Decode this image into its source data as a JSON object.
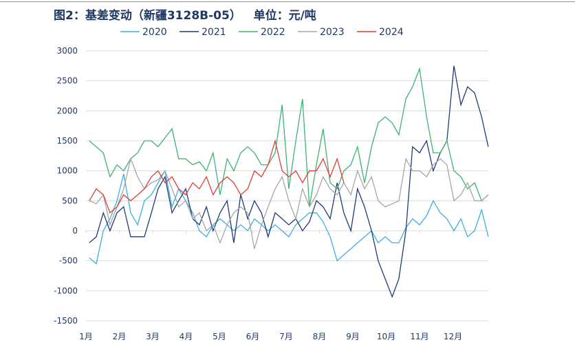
{
  "chart_data": {
    "type": "line",
    "title": "图2：基差变动（新疆3128B-05）   单位：元/吨",
    "xlabel": "",
    "ylabel": "",
    "ylim": [
      -1500,
      3000
    ],
    "yticks": [
      3000,
      2500,
      2000,
      1500,
      1000,
      500,
      0,
      -500,
      -1000,
      -1500
    ],
    "xlim": [
      1,
      13.1
    ],
    "xtick_labels": [
      "1月",
      "2月",
      "3月",
      "4月",
      "5月",
      "6月",
      "7月",
      "8月",
      "9月",
      "10月",
      "11月",
      "12月"
    ],
    "grid": true,
    "legend_position": "top",
    "x": [
      1.1,
      1.31,
      1.52,
      1.72,
      1.93,
      2.13,
      2.34,
      2.55,
      2.75,
      2.96,
      3.16,
      3.37,
      3.58,
      3.78,
      3.99,
      4.2,
      4.4,
      4.61,
      4.81,
      5.02,
      5.23,
      5.43,
      5.64,
      5.85,
      6.05,
      6.26,
      6.46,
      6.67,
      6.88,
      7.08,
      7.29,
      7.49,
      7.7,
      7.91,
      8.11,
      8.32,
      8.53,
      8.73,
      8.94,
      9.14,
      9.35,
      9.56,
      9.76,
      9.97,
      10.18,
      10.38,
      10.59,
      10.79,
      11.0,
      11.21,
      11.41,
      11.62,
      11.82,
      12.03,
      12.24,
      12.44,
      12.65,
      12.86,
      13.06
    ],
    "series": [
      {
        "name": "2020",
        "color": "#3bb0e0",
        "values": [
          -450,
          -550,
          0,
          200,
          500,
          950,
          300,
          100,
          500,
          600,
          800,
          1000,
          400,
          700,
          500,
          300,
          0,
          -100,
          100,
          200,
          100,
          0,
          100,
          0,
          200,
          100,
          0,
          100,
          0,
          -100,
          100,
          200,
          300,
          300,
          150,
          -100,
          -500,
          -400,
          -300,
          -200,
          -100,
          0,
          -200,
          -100,
          -200,
          -200,
          50,
          200,
          100,
          250,
          500,
          300,
          200,
          0,
          200,
          -100,
          0,
          350,
          -100
        ]
      },
      {
        "name": "2021",
        "color": "#1f3a78",
        "values": [
          -200,
          -100,
          300,
          0,
          300,
          400,
          -100,
          -100,
          -100,
          300,
          700,
          900,
          300,
          500,
          700,
          200,
          100,
          400,
          0,
          300,
          500,
          -200,
          600,
          200,
          500,
          300,
          -100,
          300,
          200,
          100,
          200,
          0,
          150,
          500,
          400,
          200,
          800,
          300,
          0,
          700,
          400,
          0,
          -500,
          -800,
          -1100,
          -800,
          0,
          1400,
          1300,
          1500,
          1000,
          1300,
          1500,
          2750,
          2100,
          2400,
          2300,
          1900,
          1400
        ]
      },
      {
        "name": "2022",
        "color": "#3cb371",
        "values": [
          1500,
          1400,
          1300,
          900,
          1100,
          1000,
          1200,
          1300,
          1500,
          1500,
          1400,
          1550,
          1700,
          1200,
          1200,
          1100,
          1150,
          1000,
          1300,
          600,
          1200,
          1000,
          1300,
          1400,
          1300,
          1100,
          1100,
          1300,
          2100,
          700,
          1500,
          2200,
          400,
          1100,
          1700,
          800,
          700,
          1000,
          1100,
          1400,
          800,
          1400,
          1800,
          1900,
          1800,
          1600,
          2200,
          2400,
          2700,
          1900,
          1300,
          1300,
          1500,
          1000,
          900,
          700,
          800,
          500,
          600
        ]
      },
      {
        "name": "2023",
        "color": "#a6a6a6",
        "values": [
          500,
          450,
          600,
          100,
          400,
          700,
          1200,
          900,
          700,
          800,
          850,
          1000,
          700,
          400,
          500,
          200,
          300,
          0,
          100,
          -200,
          100,
          300,
          400,
          300,
          -300,
          100,
          400,
          700,
          900,
          500,
          200,
          700,
          400,
          600,
          900,
          700,
          600,
          800,
          600,
          1000,
          700,
          900,
          500,
          400,
          450,
          500,
          1200,
          1000,
          1000,
          900,
          1100,
          1200,
          1100,
          500,
          600,
          800,
          500,
          500,
          600
        ]
      },
      {
        "name": "2024",
        "color": "#e03c31",
        "values": [
          500,
          700,
          600,
          300,
          400,
          600,
          500,
          600,
          700,
          900,
          1000,
          800,
          900,
          700,
          600,
          800,
          700,
          900,
          600,
          800,
          900,
          800,
          600,
          700,
          1000,
          900,
          1100,
          1500,
          1000,
          900,
          1000,
          800,
          1000,
          1000,
          1200,
          900,
          1200,
          800,
          null,
          null,
          null,
          null,
          null,
          null,
          null,
          null,
          null,
          null,
          null,
          null,
          null,
          null,
          null,
          null,
          null,
          null,
          null,
          null,
          null
        ]
      }
    ]
  }
}
